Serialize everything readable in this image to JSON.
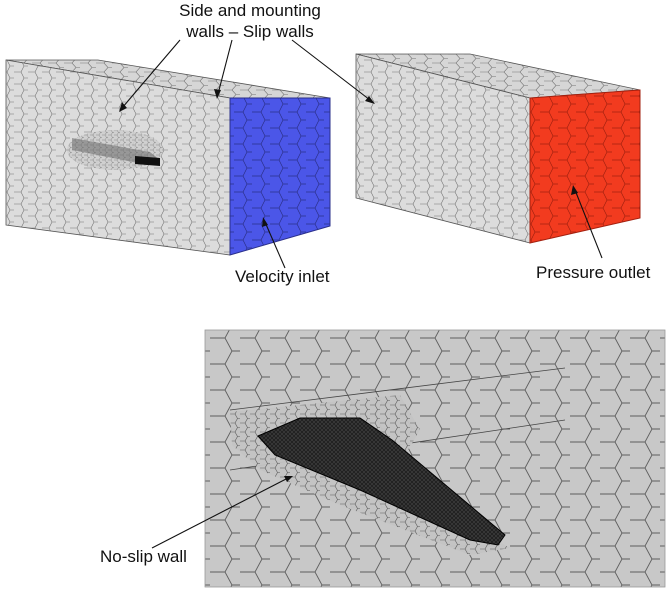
{
  "labels": {
    "side_walls_line1": "Side and mounting",
    "side_walls_line2": "walls – Slip walls",
    "velocity_inlet": "Velocity inlet",
    "pressure_outlet": "Pressure outlet",
    "no_slip_wall": "No-slip wall"
  },
  "colors": {
    "mesh_face": "#d9d9d9",
    "mesh_line": "#6f6f6f",
    "inlet": "#4a55e6",
    "outlet": "#f23a1e",
    "closeup_bg": "#c6c6c6",
    "wing": "#1c1c1c",
    "leader_line": "#111111"
  }
}
